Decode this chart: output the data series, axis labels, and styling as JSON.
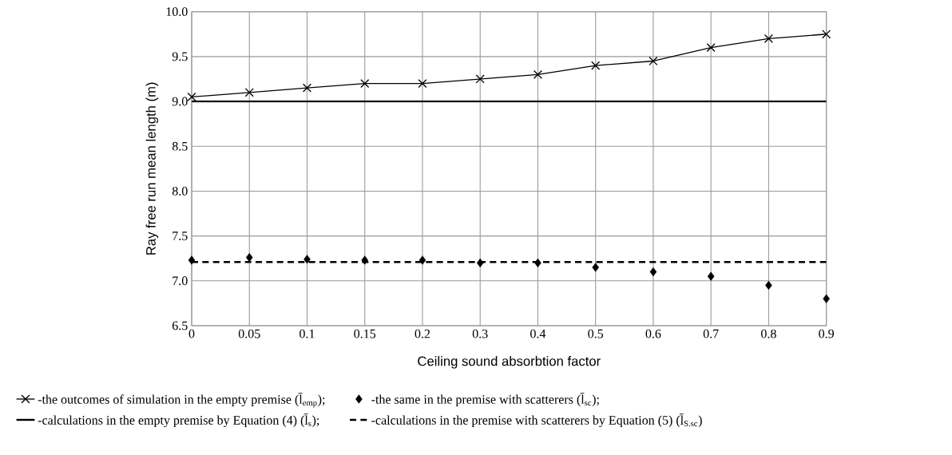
{
  "chart_data": {
    "type": "line",
    "xlabel": "Ceiling sound absorbtion factor",
    "ylabel": "Ray free run mean length (m)",
    "categories": [
      "0",
      "0.05",
      "0.1",
      "0.15",
      "0.2",
      "0.3",
      "0.4",
      "0.5",
      "0.6",
      "0.7",
      "0.8",
      "0.9"
    ],
    "series": [
      {
        "name": "-the outcomes of simulation in the empty premise (l̄$_{emp}$);",
        "color": "#000000",
        "marker": "cross",
        "line_style": "solid",
        "values": [
          9.05,
          9.1,
          9.15,
          9.2,
          9.2,
          9.25,
          9.3,
          9.4,
          9.45,
          9.6,
          9.7,
          9.75
        ]
      },
      {
        "name": "-the same in the premise with scatterers (l̄$_{sc}$);",
        "color": "#000000",
        "type": "scatter",
        "marker": "diamond",
        "values": [
          7.23,
          7.26,
          7.24,
          7.23,
          7.23,
          7.2,
          7.2,
          7.15,
          7.1,
          7.05,
          6.95,
          6.8
        ]
      },
      {
        "name": "-calculations in the empty premise by Equation (4) (l̄$_{s}$);",
        "color": "#000000",
        "type": "line",
        "marker": "none",
        "line_style": "solid",
        "values": [
          9.0,
          9.0,
          9.0,
          9.0,
          9.0,
          9.0,
          9.0,
          9.0,
          9.0,
          9.0,
          9.0,
          9.0
        ]
      },
      {
        "name": "-calculations in the premise with scatterers by Equation (5) (l̄$_{S.sc}$)",
        "color": "#000000",
        "type": "line",
        "marker": "none",
        "line_style": "dashed",
        "values": [
          7.21,
          7.21,
          7.21,
          7.21,
          7.21,
          7.21,
          7.21,
          7.21,
          7.21,
          7.21,
          7.21,
          7.21
        ]
      }
    ],
    "ylim": [
      6.5,
      10.0
    ],
    "yticks": [
      6.5,
      {
        "value": 7.0,
        "label": "7.0"
      },
      7.5,
      {
        "value": 8.0,
        "label": "8.0"
      },
      8.5,
      {
        "value": 9.0,
        "label": "9.0"
      },
      9.5,
      {
        "value": 10.0,
        "label": "10.0"
      }
    ],
    "grid": true,
    "legend": "bottom"
  }
}
